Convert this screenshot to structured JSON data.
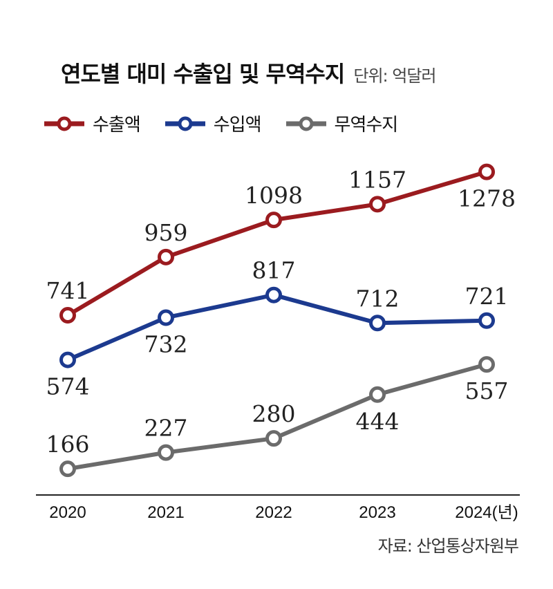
{
  "header": {
    "title": "연도별 대미 수출입 및 무역수지",
    "unit": "단위: 억달러"
  },
  "source": "자료: 산업통상자원부",
  "chart_data": {
    "type": "line",
    "categories": [
      "2020",
      "2021",
      "2022",
      "2023",
      "2024(년)"
    ],
    "series": [
      {
        "name": "수출액",
        "color": "#9b1b1f",
        "values": [
          741,
          959,
          1098,
          1157,
          1278
        ],
        "labels": [
          "741",
          "959",
          "1098",
          "1157",
          "1278"
        ]
      },
      {
        "name": "수입액",
        "color": "#1c3a8f",
        "values": [
          574,
          732,
          817,
          712,
          721
        ],
        "labels": [
          "574",
          "732",
          "817",
          "712",
          "721"
        ]
      },
      {
        "name": "무역수지",
        "color": "#6b6b6b",
        "values": [
          166,
          227,
          280,
          444,
          557
        ],
        "labels": [
          "166",
          "227",
          "280",
          "444",
          "557"
        ]
      }
    ],
    "grid": false,
    "legend": "top-left"
  }
}
